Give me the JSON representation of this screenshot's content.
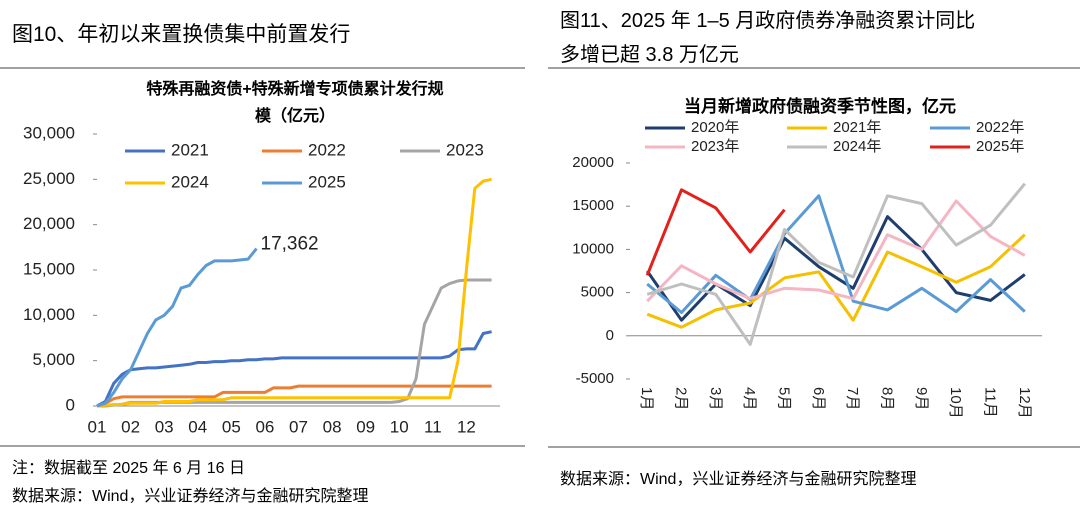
{
  "headings": [
    "图10、年初以来置换债集中前置发行",
    "图11、2025 年 1–5 月政府债券净融资累计同比\n多增已超 3.8 万亿元"
  ],
  "notes": [
    "注：数据截至 2025 年 6 月 16 日",
    "数据来源：Wind，兴业证券经济与金融研究院整理",
    "数据来源：Wind，兴业证券经济与金融研究院整理"
  ],
  "chart_data": [
    {
      "type": "line",
      "title": "特殊再融资债+特殊新增专项债累计发行规\n模（亿元）",
      "x": [
        1,
        1.25,
        1.5,
        1.75,
        2,
        2.25,
        2.5,
        2.75,
        3,
        3.25,
        3.5,
        3.75,
        4,
        4.25,
        4.5,
        4.75,
        5,
        5.25,
        5.5,
        5.75,
        6,
        6.25,
        6.5,
        6.75,
        7,
        7.25,
        7.5,
        7.75,
        8,
        8.25,
        8.5,
        8.75,
        9,
        9.25,
        9.5,
        9.75,
        10,
        10.25,
        10.5,
        10.75,
        11,
        11.25,
        11.5,
        11.75,
        12,
        12.25,
        12.5,
        12.75
      ],
      "xlim": [
        1,
        13
      ],
      "xticks": [
        {
          "value": 1,
          "label": "01"
        },
        {
          "value": 2,
          "label": "02"
        },
        {
          "value": 3,
          "label": "03"
        },
        {
          "value": 4,
          "label": "04"
        },
        {
          "value": 5,
          "label": "05"
        },
        {
          "value": 6,
          "label": "06"
        },
        {
          "value": 7,
          "label": "07"
        },
        {
          "value": 8,
          "label": "08"
        },
        {
          "value": 9,
          "label": "09"
        },
        10,
        11,
        12
      ],
      "ylim": [
        0,
        30000
      ],
      "yticks": [
        0,
        {
          "value": 5000,
          "label": "5,000"
        },
        {
          "value": 10000,
          "label": "10,000"
        },
        {
          "value": 15000,
          "label": "15,000"
        },
        {
          "value": 20000,
          "label": "20,000"
        },
        {
          "value": 25000,
          "label": "25,000"
        },
        {
          "value": 30000,
          "label": "30,000"
        }
      ],
      "annotation": "17,362",
      "series": [
        {
          "name": "2021",
          "color": "#4472c4",
          "values": [
            0,
            500,
            2500,
            3500,
            4000,
            4100,
            4200,
            4200,
            4300,
            4400,
            4500,
            4600,
            4800,
            4800,
            4900,
            4900,
            5000,
            5000,
            5100,
            5100,
            5200,
            5200,
            5300,
            5300,
            5300,
            5300,
            5300,
            5300,
            5300,
            5300,
            5300,
            5300,
            5300,
            5300,
            5300,
            5300,
            5300,
            5300,
            5300,
            5300,
            5300,
            5300,
            5500,
            6200,
            6300,
            6300,
            8000,
            8200
          ]
        },
        {
          "name": "2022",
          "color": "#ed7d31",
          "values": [
            0,
            300,
            800,
            1000,
            1000,
            1000,
            1000,
            1000,
            1000,
            1000,
            1000,
            1000,
            1000,
            1000,
            1000,
            1500,
            1500,
            1500,
            1500,
            1500,
            1500,
            2000,
            2000,
            2000,
            2200,
            2200,
            2200,
            2200,
            2200,
            2200,
            2200,
            2200,
            2200,
            2200,
            2200,
            2200,
            2200,
            2200,
            2200,
            2200,
            2200,
            2200,
            2200,
            2200,
            2200,
            2200,
            2200,
            2200
          ]
        },
        {
          "name": "2023",
          "color": "#a5a5a5",
          "values": [
            0,
            0,
            100,
            200,
            400,
            400,
            400,
            400,
            400,
            400,
            400,
            400,
            400,
            400,
            400,
            400,
            400,
            400,
            400,
            400,
            400,
            400,
            400,
            400,
            400,
            400,
            400,
            400,
            400,
            400,
            400,
            400,
            400,
            400,
            400,
            400,
            500,
            800,
            3000,
            9000,
            11000,
            13000,
            13500,
            13800,
            13900,
            13900,
            13900,
            13900
          ]
        },
        {
          "name": "2024",
          "color": "#ffc000",
          "values": [
            0,
            100,
            150,
            200,
            300,
            300,
            300,
            300,
            500,
            500,
            500,
            500,
            700,
            700,
            700,
            700,
            900,
            900,
            900,
            900,
            900,
            900,
            900,
            900,
            900,
            900,
            900,
            900,
            900,
            900,
            900,
            900,
            900,
            900,
            900,
            900,
            900,
            900,
            900,
            900,
            900,
            900,
            900,
            5000,
            15000,
            24000,
            24800,
            25000
          ]
        },
        {
          "name": "2025",
          "color": "#5b9bd5",
          "values": [
            0,
            300,
            1500,
            3000,
            4000,
            6000,
            8000,
            9500,
            10000,
            11000,
            13000,
            13300,
            14500,
            15500,
            16000,
            16000,
            16000,
            16100,
            16200,
            17362,
            null,
            null,
            null,
            null,
            null,
            null,
            null,
            null,
            null,
            null,
            null,
            null,
            null,
            null,
            null,
            null,
            null,
            null,
            null,
            null,
            null,
            null,
            null,
            null,
            null,
            null,
            null,
            null
          ]
        }
      ]
    },
    {
      "type": "line",
      "title": "当月新增政府债融资季节性图，亿元",
      "categories": [
        "1月",
        "2月",
        "3月",
        "4月",
        "5月",
        "6月",
        "7月",
        "8月",
        "9月",
        "10月",
        "11月",
        "12月"
      ],
      "ylim": [
        -5000,
        20000
      ],
      "yticks": [
        -5000,
        0,
        5000,
        10000,
        15000,
        20000
      ],
      "series": [
        {
          "name": "2020年",
          "color": "#1f3e6e",
          "values": [
            7500,
            1800,
            6000,
            3500,
            11300,
            8000,
            5500,
            13800,
            10000,
            5000,
            4100,
            7100
          ]
        },
        {
          "name": "2021年",
          "color": "#f5c000",
          "values": [
            2500,
            1000,
            3000,
            3800,
            6700,
            7400,
            1800,
            9700,
            8000,
            6200,
            8000,
            11700
          ]
        },
        {
          "name": "2022年",
          "color": "#5b9bd5",
          "values": [
            6000,
            2700,
            7000,
            4200,
            11800,
            16200,
            4000,
            3000,
            5500,
            2800,
            6500,
            2800
          ]
        },
        {
          "name": "2023年",
          "color": "#f4b6c2",
          "values": [
            4000,
            8100,
            6000,
            4300,
            5500,
            5300,
            4300,
            11700,
            10000,
            15600,
            11500,
            9300
          ]
        },
        {
          "name": "2024年",
          "color": "#bfbfbf",
          "values": [
            4800,
            6000,
            4800,
            -1000,
            12300,
            8500,
            6800,
            16200,
            15300,
            10500,
            12800,
            17600
          ]
        },
        {
          "name": "2025年",
          "color": "#e3211c",
          "values": [
            7000,
            16900,
            14800,
            9700,
            14600,
            null,
            null,
            null,
            null,
            null,
            null,
            null
          ]
        }
      ]
    }
  ]
}
